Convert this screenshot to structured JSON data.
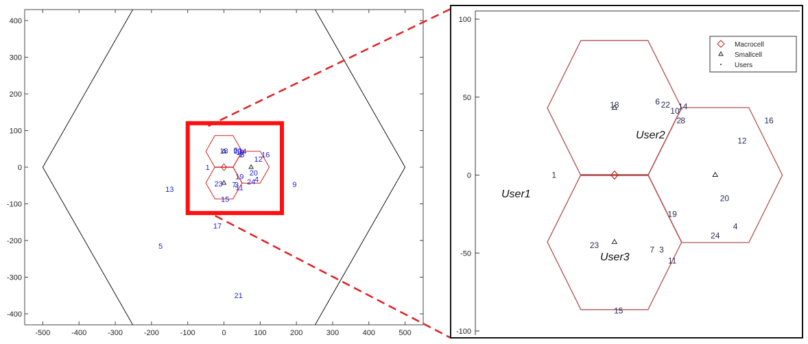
{
  "chart_data": [
    {
      "type": "scatter",
      "title": "",
      "xlabel": "",
      "ylabel": "",
      "xlim": [
        -550,
        550
      ],
      "ylim": [
        -430,
        430
      ],
      "xticks": [
        -500,
        -400,
        -300,
        -200,
        -100,
        0,
        100,
        200,
        300,
        400,
        500
      ],
      "yticks": [
        -400,
        -300,
        -200,
        -100,
        0,
        100,
        200,
        300,
        400
      ],
      "macro_hexagon": {
        "center": [
          0,
          0
        ],
        "radius": 500,
        "color": "#111111"
      },
      "small_hexagons": {
        "radius": 50,
        "color": "#d22020",
        "centers": [
          [
            0,
            43
          ],
          [
            0,
            -43
          ],
          [
            75,
            0
          ]
        ]
      },
      "macrocell": [
        [
          0,
          0
        ]
      ],
      "smallcells": [
        [
          0,
          43
        ],
        [
          0,
          -43
        ],
        [
          75,
          0
        ]
      ],
      "users": [
        {
          "label": "1",
          "x": -45,
          "y": 0
        },
        {
          "label": "2",
          "x": 48,
          "y": 35
        },
        {
          "label": "3",
          "x": 35,
          "y": -48
        },
        {
          "label": "4",
          "x": 90,
          "y": -33
        },
        {
          "label": "5",
          "x": -175,
          "y": -215
        },
        {
          "label": "6",
          "x": 32,
          "y": 47
        },
        {
          "label": "7",
          "x": 28,
          "y": -48
        },
        {
          "label": "8",
          "x": 51,
          "y": 35
        },
        {
          "label": "9",
          "x": 195,
          "y": -47
        },
        {
          "label": "10",
          "x": 45,
          "y": 41
        },
        {
          "label": "11",
          "x": 43,
          "y": -55
        },
        {
          "label": "12",
          "x": 95,
          "y": 22
        },
        {
          "label": "13",
          "x": -150,
          "y": -60
        },
        {
          "label": "14",
          "x": 51,
          "y": 44
        },
        {
          "label": "15",
          "x": 3,
          "y": -87
        },
        {
          "label": "16",
          "x": 115,
          "y": 35
        },
        {
          "label": "17",
          "x": -18,
          "y": -160
        },
        {
          "label": "18",
          "x": 0,
          "y": 45
        },
        {
          "label": "19",
          "x": 43,
          "y": -25
        },
        {
          "label": "20",
          "x": 82,
          "y": -15
        },
        {
          "label": "21",
          "x": 40,
          "y": -350
        },
        {
          "label": "22",
          "x": 38,
          "y": 45
        },
        {
          "label": "23",
          "x": -15,
          "y": -45
        },
        {
          "label": "24",
          "x": 75,
          "y": -39
        }
      ]
    },
    {
      "type": "scatter",
      "title": "",
      "xlabel": "",
      "ylabel": "",
      "ylim": [
        -105,
        105
      ],
      "yticks": [
        -100,
        -50,
        0,
        50,
        100
      ],
      "legend": {
        "placement": "top-right",
        "entries": [
          {
            "label": "Macrocell",
            "marker": "diamond",
            "color": "#c02020"
          },
          {
            "label": "Smallcell",
            "marker": "triangle",
            "color": "#222222"
          },
          {
            "label": "Users",
            "marker": "dot",
            "color": "#222222"
          }
        ]
      },
      "annotations": [
        "User1",
        "User2",
        "User3"
      ]
    }
  ]
}
